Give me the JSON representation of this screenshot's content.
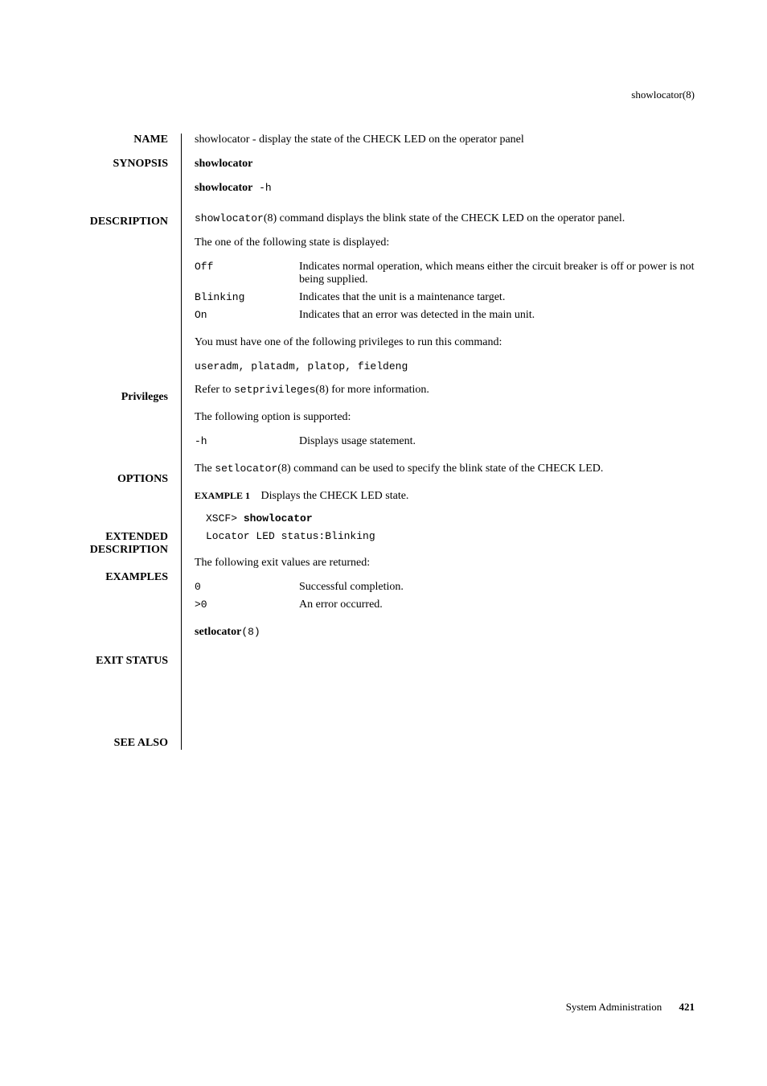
{
  "header": "showlocator(8)",
  "name": {
    "label": "NAME",
    "text": "showlocator - display the state of the CHECK LED on the operator panel"
  },
  "synopsis": {
    "label": "SYNOPSIS",
    "line1": "showlocator",
    "line2a": "showlocator",
    "line2b": " -h"
  },
  "description": {
    "label": "DESCRIPTION",
    "p1a": "showlocator",
    "p1b": "(8) command displays the blink state of the CHECK LED on the operator panel.",
    "p2": "The one of the following state is displayed:",
    "states": [
      {
        "term": "Off",
        "desc": "Indicates normal operation, which means either the circuit breaker is off or power is not being supplied."
      },
      {
        "term": "Blinking",
        "desc": "Indicates that the unit is a maintenance target."
      },
      {
        "term": "On",
        "desc": "Indicates that an error was detected in the main unit."
      }
    ]
  },
  "privileges": {
    "label": "Privileges",
    "p1": "You must have one of the following privileges to run this command:",
    "p2": "useradm, platadm, platop, fieldeng",
    "p3a": "Refer to ",
    "p3b": "setprivileges",
    "p3c": "(8) for more information."
  },
  "options": {
    "label": "OPTIONS",
    "p1": "The following option is supported:",
    "items": [
      {
        "term": "-h",
        "desc": "Displays usage statement."
      }
    ]
  },
  "extdesc": {
    "label1": "EXTENDED",
    "label2": "DESCRIPTION",
    "p1a": "The ",
    "p1b": "setlocator",
    "p1c": "(8) command can be used to specify the blink state of the CHECK LED."
  },
  "examples": {
    "label": "EXAMPLES",
    "exlabel": "EXAMPLE 1",
    "extext": "Displays the CHECK LED state.",
    "code1a": "XSCF> ",
    "code1b": "showlocator",
    "code2": "Locator LED status:Blinking"
  },
  "exitstatus": {
    "label": "EXIT STATUS",
    "p1": "The following exit values are returned:",
    "items": [
      {
        "term": "0",
        "desc": "Successful completion."
      },
      {
        "term": ">0",
        "desc": "An error occurred."
      }
    ]
  },
  "seealso": {
    "label": "SEE ALSO",
    "cmd": "setlocator",
    "suffix": "(8)"
  },
  "footer": {
    "text": "System Administration",
    "page": "421"
  }
}
